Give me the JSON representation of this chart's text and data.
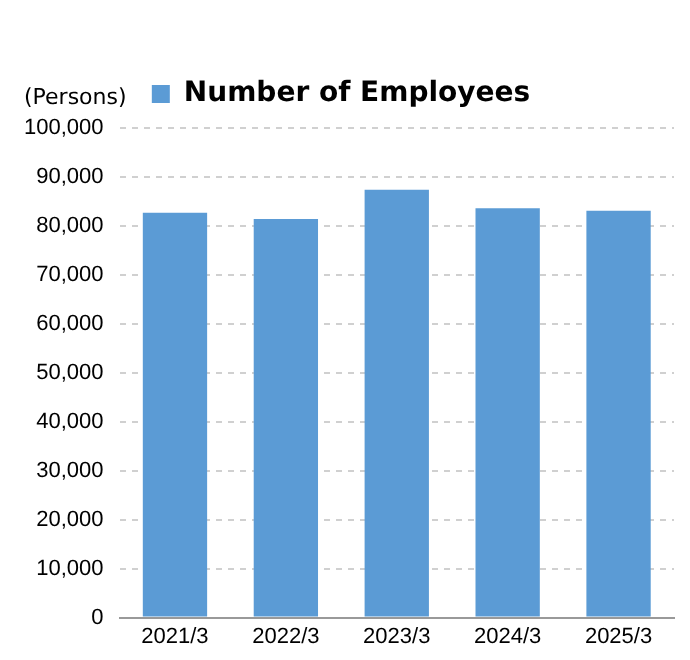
{
  "chart_data": {
    "type": "bar",
    "ylabel": "(Persons)",
    "categories": [
      "2021/3",
      "2022/3",
      "2023/3",
      "2024/3",
      "2025/3"
    ],
    "series": [
      {
        "name": "Number of Employees",
        "color": "#5b9bd5",
        "values": [
          82700,
          81400,
          87400,
          83600,
          83100
        ]
      }
    ],
    "ylim": [
      0,
      100000
    ],
    "yticks": [
      {
        "value": 0,
        "label": "0"
      },
      {
        "value": 10000,
        "label": "10,000"
      },
      {
        "value": 20000,
        "label": "20,000"
      },
      {
        "value": 30000,
        "label": "30,000"
      },
      {
        "value": 40000,
        "label": "40,000"
      },
      {
        "value": 50000,
        "label": "50,000"
      },
      {
        "value": 60000,
        "label": "60,000"
      },
      {
        "value": 70000,
        "label": "70,000"
      },
      {
        "value": 80000,
        "label": "80,000"
      },
      {
        "value": 90000,
        "label": "90,000"
      },
      {
        "value": 100000,
        "label": "100,000"
      }
    ],
    "grid": "y",
    "legend": "top"
  }
}
